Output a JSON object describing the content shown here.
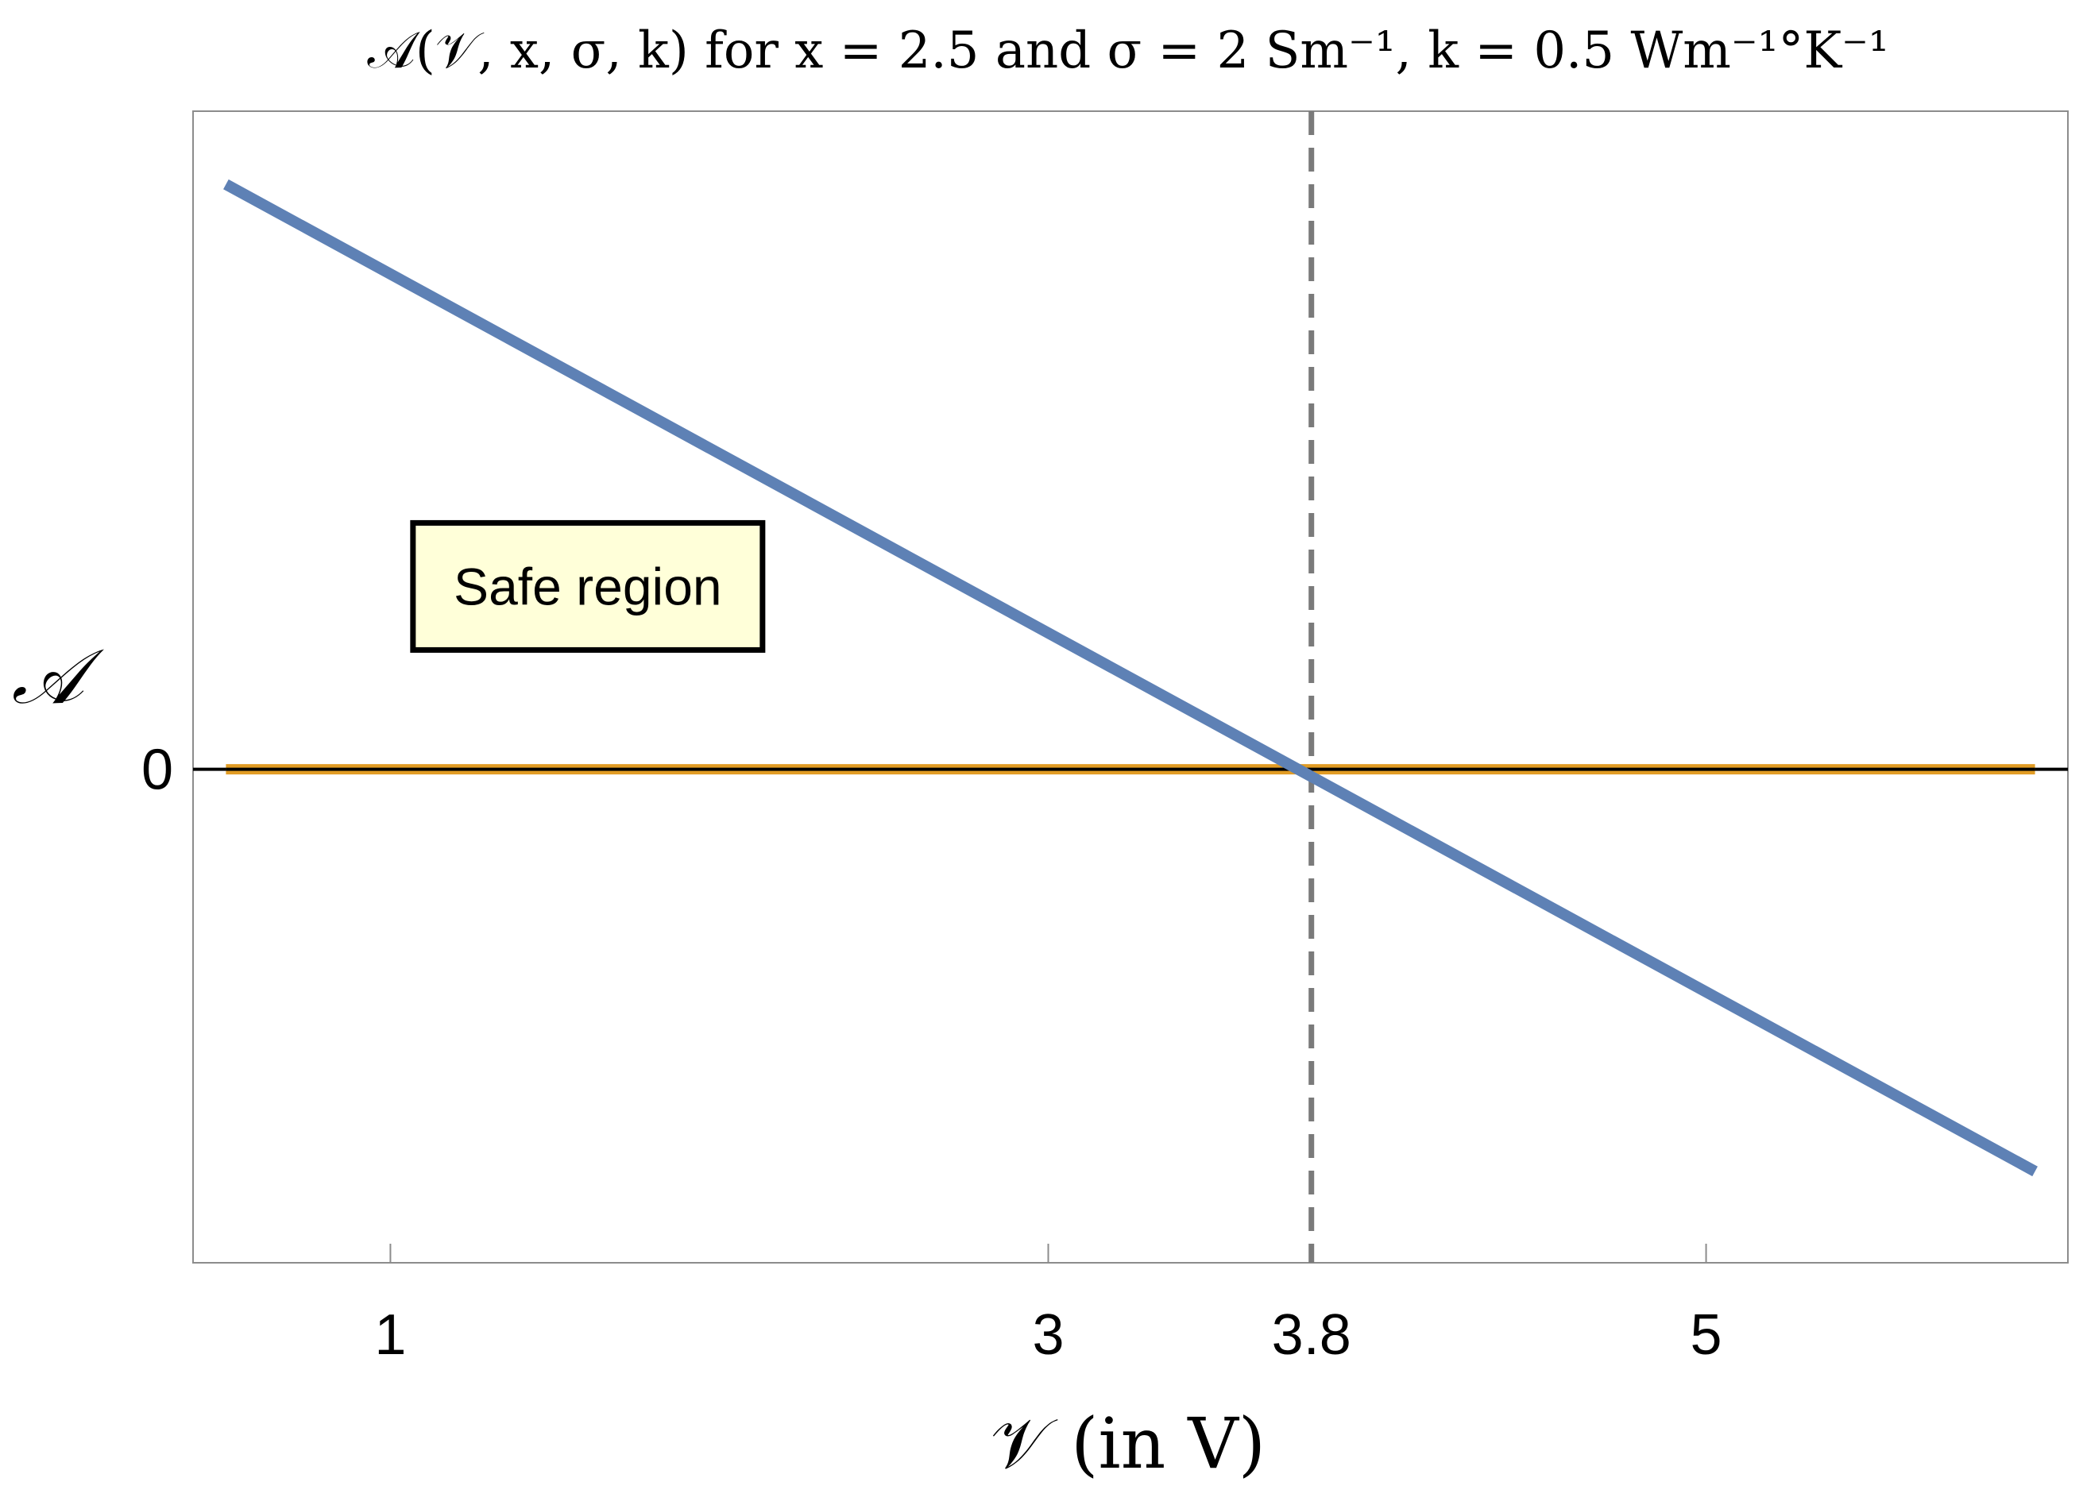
{
  "chart_data": {
    "type": "line",
    "title": "𝒜(𝒱, x, σ, k) for x = 2.5 and σ = 2 Sm⁻¹,  k = 0.5 Wm⁻¹°K⁻¹",
    "xlabel": "𝒱 (in V)",
    "ylabel": "𝒜",
    "xlim": [
      0.4,
      6.1
    ],
    "ylim": [
      -1.35,
      1.8
    ],
    "x_ticks": [
      {
        "value": 1,
        "label": "1"
      },
      {
        "value": 3,
        "label": "3"
      },
      {
        "value": 3.8,
        "label": "3.8"
      },
      {
        "value": 5,
        "label": "5"
      }
    ],
    "y_ticks": [
      {
        "value": 0,
        "label": "0"
      }
    ],
    "grid": false,
    "series": [
      {
        "x": [
          0.5,
          6.0
        ],
        "y": [
          1.6,
          -1.1
        ],
        "color": "#5e81b5"
      },
      {
        "x": [
          0.5,
          6.0
        ],
        "y": [
          0,
          0
        ],
        "color": "#e19c24"
      }
    ],
    "reference_lines": {
      "horizontal_axis_y": 0,
      "vertical_dashed_x": 3.8
    },
    "annotations": [
      {
        "text": "Safe region",
        "x": 1.6,
        "y": 0.5,
        "box_fill": "#ffffd9",
        "box_stroke": "#000000"
      }
    ]
  }
}
